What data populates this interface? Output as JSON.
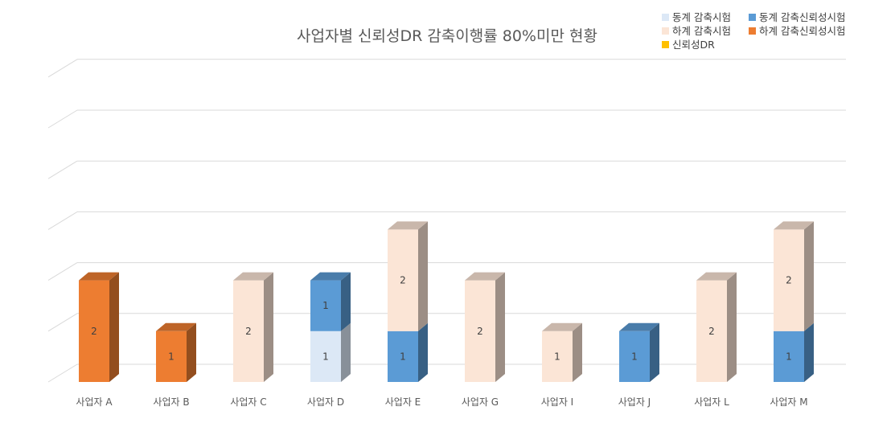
{
  "chart_data": {
    "type": "bar",
    "stacked": true,
    "three_d": true,
    "title": "사업자별 신뢰성DR 감축이행률 80%미만 현황",
    "categories": [
      "사업자 A",
      "사업자 B",
      "사업자 C",
      "사업자 D",
      "사업자 E",
      "사업자 G",
      "사업자 I",
      "사업자 J",
      "사업자 L",
      "사업자 M"
    ],
    "series": [
      {
        "name": "동계 감축시험",
        "color": "#dce8f6",
        "values": [
          0,
          0,
          0,
          1,
          0,
          0,
          0,
          0,
          0,
          0
        ]
      },
      {
        "name": "동계 감축신뢰성시험",
        "color": "#5b9bd5",
        "values": [
          0,
          0,
          0,
          1,
          1,
          0,
          0,
          1,
          0,
          1
        ]
      },
      {
        "name": "하계 감축시험",
        "color": "#fbe5d6",
        "values": [
          0,
          0,
          2,
          0,
          2,
          2,
          1,
          0,
          2,
          2
        ]
      },
      {
        "name": "하계 감축신뢰성시험",
        "color": "#ed7d31",
        "values": [
          2,
          1,
          0,
          0,
          0,
          0,
          0,
          0,
          0,
          0
        ]
      },
      {
        "name": "신뢰성DR",
        "color": "#ffc000",
        "values": [
          0,
          0,
          0,
          0,
          0,
          0,
          0,
          0,
          0,
          0
        ]
      }
    ],
    "ylim": [
      0,
      6
    ],
    "grid": true,
    "legend_position": "top-right",
    "xlabel": "",
    "ylabel": ""
  }
}
